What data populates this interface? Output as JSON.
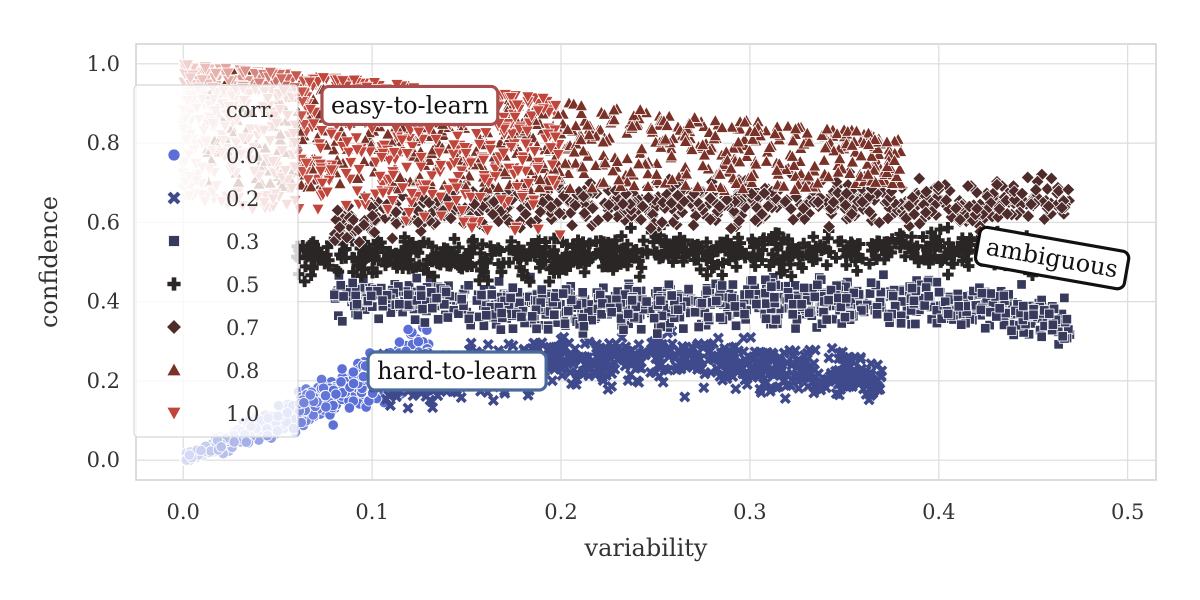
{
  "chart_data": {
    "type": "scatter",
    "xlabel": "variability",
    "ylabel": "confidence",
    "xlim": [
      -0.025,
      0.515
    ],
    "ylim": [
      -0.05,
      1.05
    ],
    "x_ticks": [
      "0.0",
      "0.1",
      "0.2",
      "0.3",
      "0.4",
      "0.5"
    ],
    "x_tick_values": [
      0.0,
      0.1,
      0.2,
      0.3,
      0.4,
      0.5
    ],
    "y_ticks": [
      "0.0",
      "0.2",
      "0.4",
      "0.6",
      "0.8",
      "1.0"
    ],
    "y_tick_values": [
      0.0,
      0.2,
      0.4,
      0.6,
      0.8,
      1.0
    ],
    "grid": true,
    "legend": {
      "title": "corr.",
      "placement": "upper-left",
      "entries": [
        {
          "label": "0.0",
          "marker": "circle",
          "color": "#5b6fd6"
        },
        {
          "label": "0.2",
          "marker": "x",
          "color": "#3f4a8c"
        },
        {
          "label": "0.3",
          "marker": "square",
          "color": "#373a5c"
        },
        {
          "label": "0.5",
          "marker": "plus",
          "color": "#2a2626"
        },
        {
          "label": "0.7",
          "marker": "diamond",
          "color": "#4e2c2b"
        },
        {
          "label": "0.8",
          "marker": "triangle-up",
          "color": "#7a3127"
        },
        {
          "label": "1.0",
          "marker": "triangle-down",
          "color": "#c0453a"
        }
      ]
    },
    "annotations": [
      {
        "text": "easy-to-learn",
        "x": 0.12,
        "y": 0.895,
        "border_color": "#a84e4e",
        "rotation": 0
      },
      {
        "text": "hard-to-learn",
        "x": 0.145,
        "y": 0.225,
        "border_color": "#4a6a9c",
        "rotation": 0
      },
      {
        "text": "ambiguous",
        "x": 0.46,
        "y": 0.51,
        "border_color": "#111111",
        "rotation": 10
      }
    ],
    "series": [
      {
        "label": "0.0",
        "marker": "circle",
        "color": "#5b6fd6",
        "light_color": "#d9def5",
        "count": 650,
        "x_range": [
          0.0,
          0.13
        ],
        "y_center_slope": 2.0,
        "y_spread": 0.06,
        "x": [
          0.0,
          0.02,
          0.05,
          0.08,
          0.1,
          0.12
        ],
        "y": [
          0.0,
          0.04,
          0.1,
          0.16,
          0.2,
          0.27
        ]
      },
      {
        "label": "0.2",
        "marker": "x",
        "color": "#3f4a8c",
        "count": 750,
        "x_range": [
          0.1,
          0.37
        ],
        "x": [
          0.1,
          0.15,
          0.2,
          0.25,
          0.3,
          0.35,
          0.37
        ],
        "y": [
          0.2,
          0.22,
          0.25,
          0.26,
          0.24,
          0.22,
          0.2
        ]
      },
      {
        "label": "0.3",
        "marker": "square",
        "color": "#373a5c",
        "count": 900,
        "x_range": [
          0.08,
          0.47
        ],
        "x": [
          0.08,
          0.15,
          0.2,
          0.3,
          0.4,
          0.45,
          0.47
        ],
        "y": [
          0.42,
          0.4,
          0.38,
          0.4,
          0.4,
          0.37,
          0.34
        ]
      },
      {
        "label": "0.5",
        "marker": "plus",
        "color": "#2a2626",
        "count": 700,
        "x_range": [
          0.06,
          0.45
        ],
        "x": [
          0.06,
          0.15,
          0.25,
          0.35,
          0.42,
          0.45
        ],
        "y": [
          0.52,
          0.51,
          0.52,
          0.53,
          0.54,
          0.52
        ]
      },
      {
        "label": "0.7",
        "marker": "diamond",
        "color": "#4e2c2b",
        "count": 650,
        "x_range": [
          0.08,
          0.47
        ],
        "x": [
          0.08,
          0.15,
          0.25,
          0.35,
          0.42,
          0.47
        ],
        "y": [
          0.6,
          0.64,
          0.65,
          0.66,
          0.64,
          0.66
        ]
      },
      {
        "label": "0.8",
        "marker": "triangle-up",
        "color": "#7a3127",
        "count": 750,
        "x_range": [
          0.01,
          0.38
        ],
        "x": [
          0.01,
          0.1,
          0.2,
          0.3,
          0.37
        ],
        "y": [
          0.95,
          0.85,
          0.8,
          0.78,
          0.82
        ]
      },
      {
        "label": "1.0",
        "marker": "triangle-down",
        "color": "#c0453a",
        "light_color": "#f2d6d3",
        "count": 700,
        "x_range": [
          0.0,
          0.2
        ],
        "x": [
          0.0,
          0.05,
          0.1,
          0.15,
          0.2
        ],
        "y": [
          1.0,
          0.85,
          0.8,
          0.82,
          0.9
        ]
      }
    ]
  }
}
